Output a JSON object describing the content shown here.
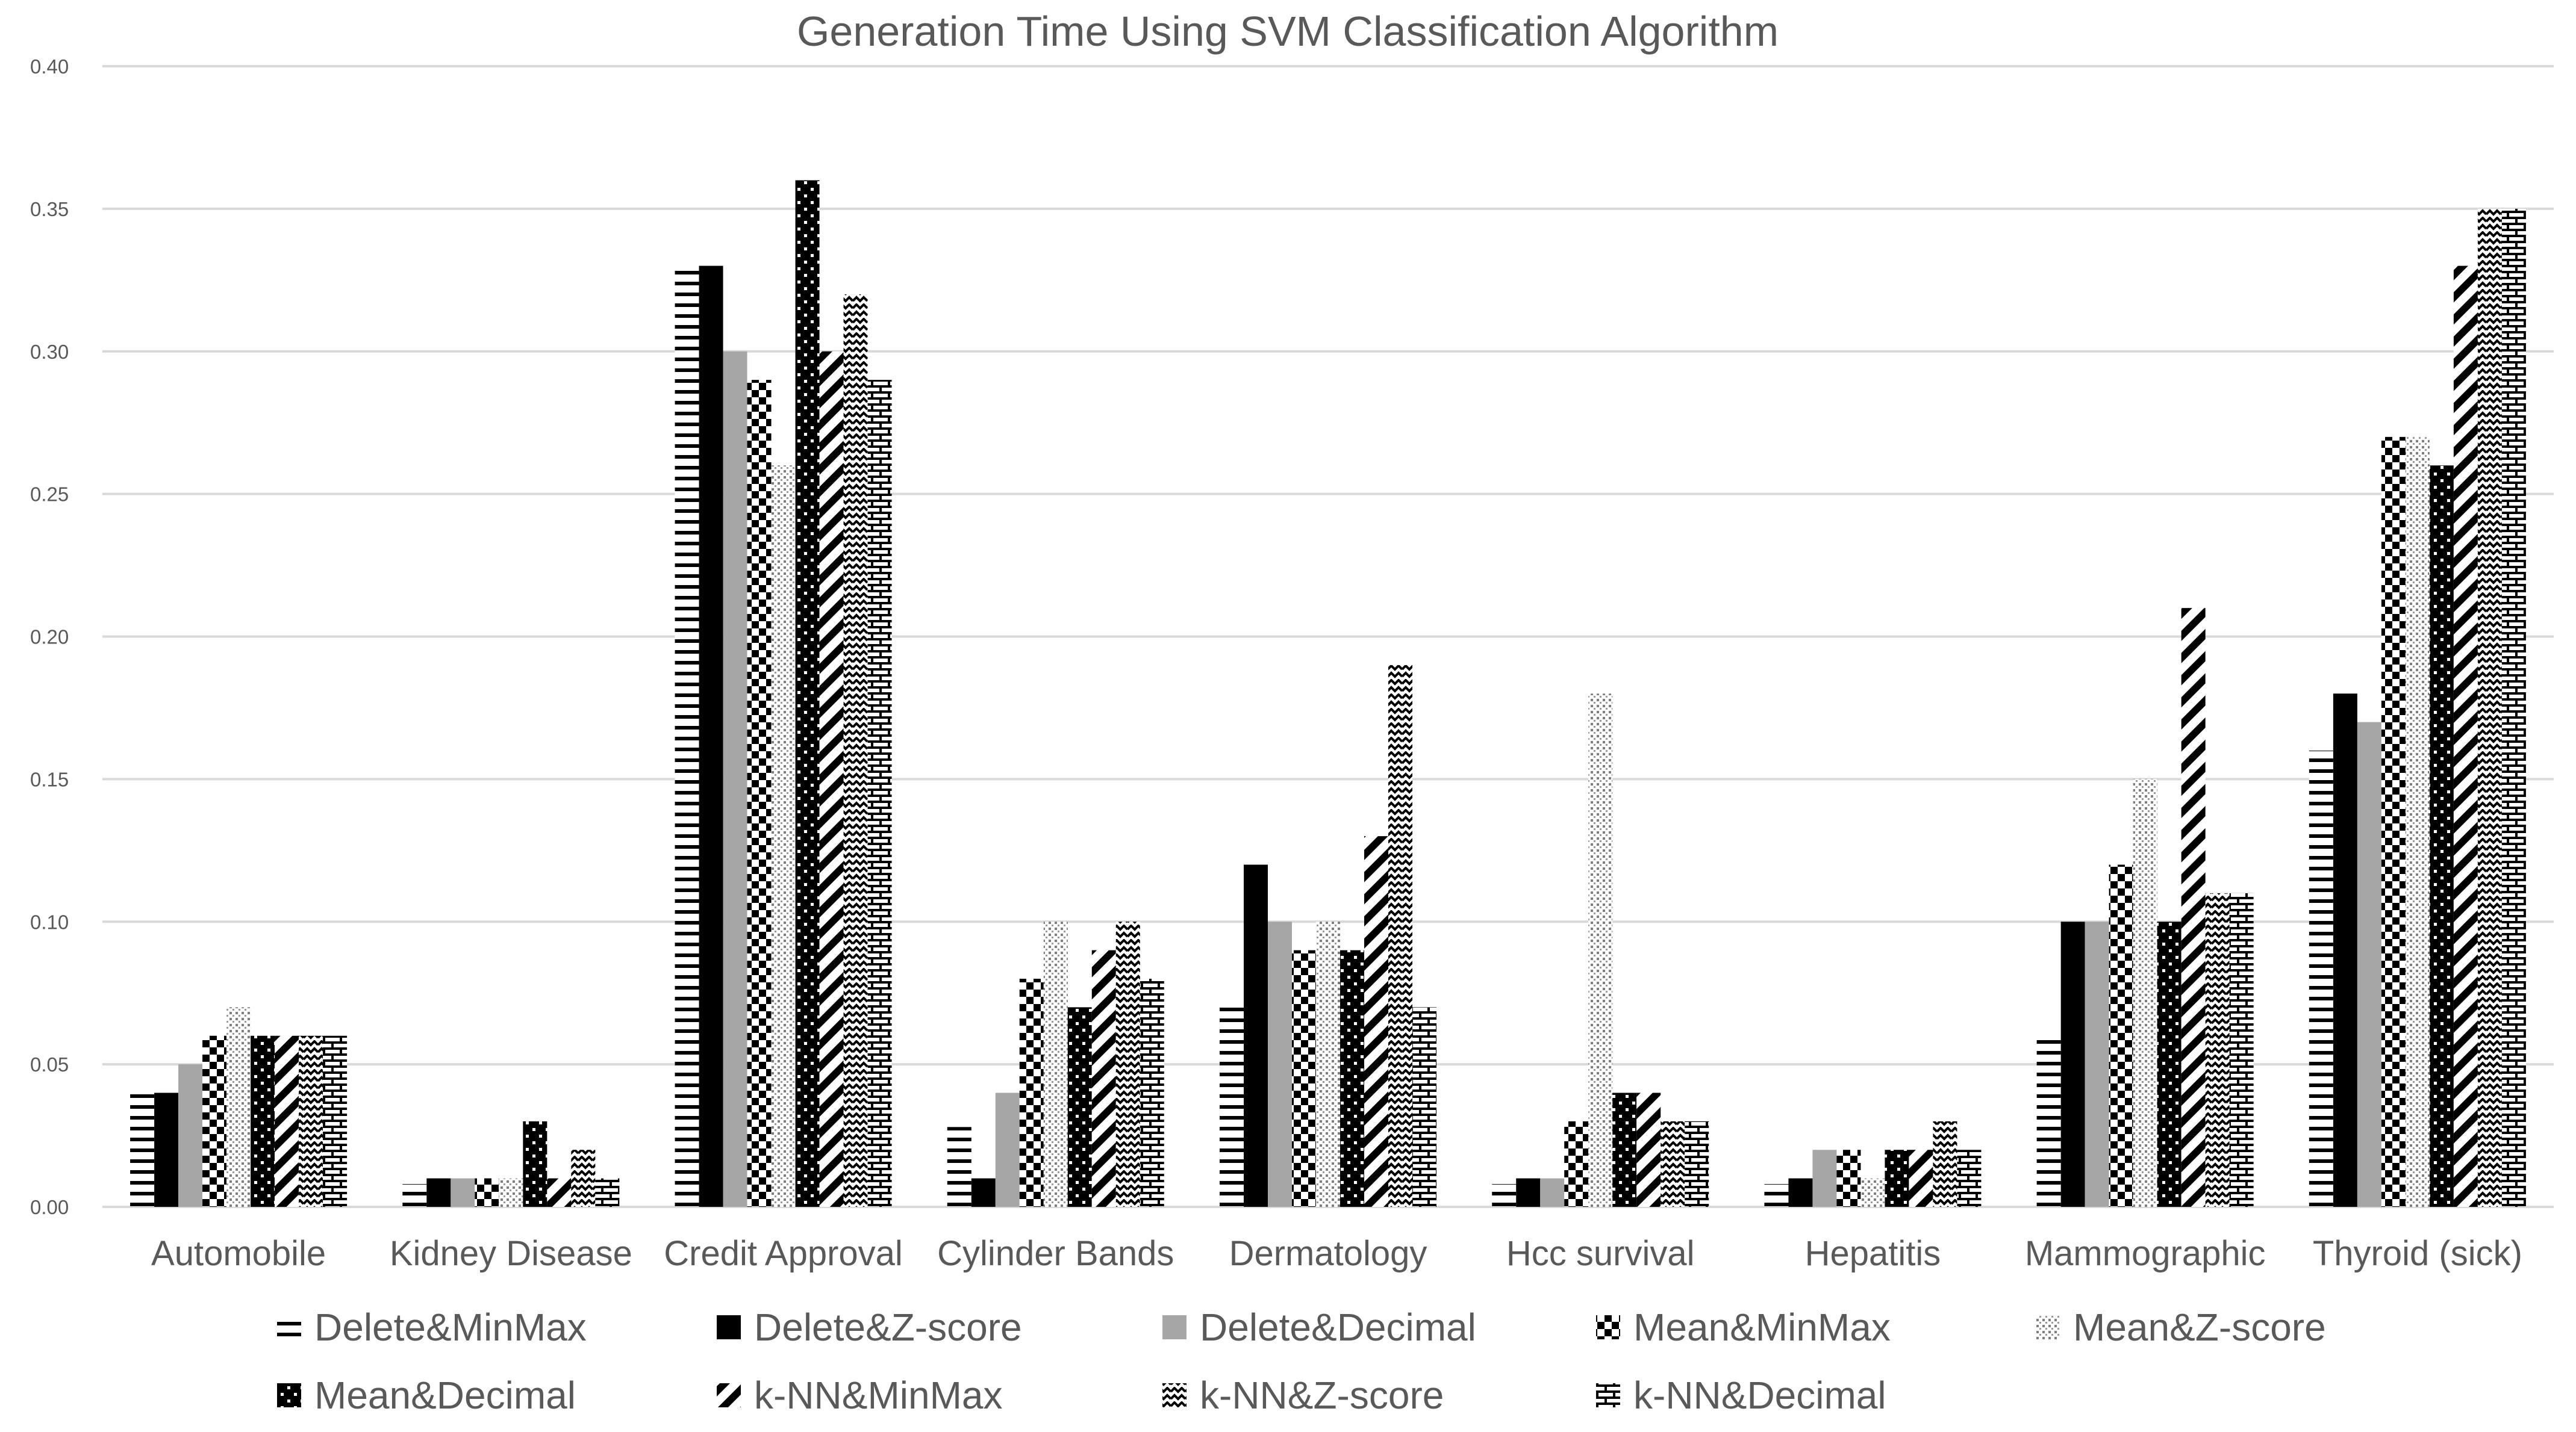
{
  "chart_data": {
    "type": "bar",
    "title": "Generation Time Using SVM Classification Algorithm",
    "xlabel": "",
    "ylabel": "",
    "ylim": [
      0,
      0.4
    ],
    "yticks": [
      "0.00",
      "0.05",
      "0.10",
      "0.15",
      "0.20",
      "0.25",
      "0.30",
      "0.35",
      "0.40"
    ],
    "grid": true,
    "legend_position": "bottom",
    "categories": [
      "Automobile",
      "Kidney Disease",
      "Credit Approval",
      "Cylinder Bands",
      "Dermatology",
      "Hcc survival",
      "Hepatitis",
      "Mammographic",
      "Thyroid (sick)"
    ],
    "series": [
      {
        "name": "Delete&MinMax",
        "pattern": "hlines",
        "values": [
          0.04,
          0.008,
          0.33,
          0.028,
          0.07,
          0.008,
          0.008,
          0.06,
          0.16
        ]
      },
      {
        "name": "Delete&Z-score",
        "pattern": "solid-black",
        "values": [
          0.04,
          0.01,
          0.33,
          0.01,
          0.12,
          0.01,
          0.01,
          0.1,
          0.18
        ]
      },
      {
        "name": "Delete&Decimal",
        "pattern": "solid-gray",
        "values": [
          0.05,
          0.01,
          0.3,
          0.04,
          0.1,
          0.01,
          0.02,
          0.1,
          0.17
        ]
      },
      {
        "name": "Mean&MinMax",
        "pattern": "checker",
        "values": [
          0.06,
          0.01,
          0.29,
          0.08,
          0.09,
          0.03,
          0.02,
          0.12,
          0.27
        ]
      },
      {
        "name": "Mean&Z-score",
        "pattern": "dots",
        "values": [
          0.07,
          0.01,
          0.26,
          0.1,
          0.1,
          0.18,
          0.01,
          0.15,
          0.27
        ]
      },
      {
        "name": "Mean&Decimal",
        "pattern": "black-dots",
        "values": [
          0.06,
          0.03,
          0.36,
          0.07,
          0.09,
          0.04,
          0.02,
          0.1,
          0.26
        ]
      },
      {
        "name": "k-NN&MinMax",
        "pattern": "diagonal",
        "values": [
          0.06,
          0.01,
          0.3,
          0.09,
          0.13,
          0.04,
          0.02,
          0.21,
          0.33
        ]
      },
      {
        "name": "k-NN&Z-score",
        "pattern": "zigzag",
        "values": [
          0.06,
          0.02,
          0.32,
          0.1,
          0.19,
          0.03,
          0.03,
          0.11,
          0.35
        ]
      },
      {
        "name": "k-NN&Decimal",
        "pattern": "brick",
        "values": [
          0.06,
          0.01,
          0.29,
          0.08,
          0.07,
          0.03,
          0.02,
          0.11,
          0.35
        ]
      }
    ]
  }
}
